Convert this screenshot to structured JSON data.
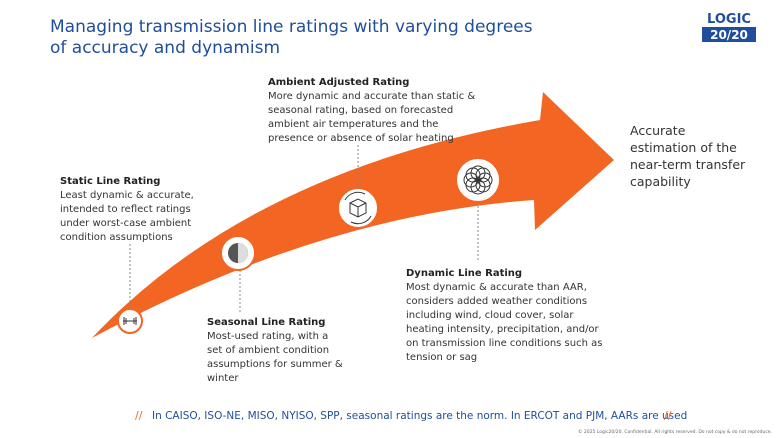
{
  "header": {
    "title": [
      "Managing transmission line ratings with varying degrees",
      "of accuracy and dynamism"
    ],
    "logo": {
      "top": "LOGIC",
      "bottom": "20/20"
    }
  },
  "stages": [
    {
      "title": "Static Line Rating",
      "description": [
        "Least dynamic & accurate,",
        "intended to reflect ratings",
        "under worst-case ambient",
        "condition assumptions"
      ]
    },
    {
      "title": "Seasonal Line Rating",
      "description": [
        "Most-used rating, with a",
        "set of ambient condition",
        "assumptions for summer &",
        "winter"
      ]
    },
    {
      "title": "Ambient Adjusted Rating",
      "description": [
        "More dynamic and accurate than static &",
        "seasonal rating, based on forecasted",
        "ambient air temperatures and the",
        "presence or absence of solar heating"
      ]
    },
    {
      "title": "Dynamic Line Rating",
      "description": [
        "Most dynamic & accurate than AAR,",
        "considers added weather conditions",
        "including wind, cloud cover, solar",
        "heating intensity, precipitation, and/or",
        "on transmission line conditions such as",
        "tension or sag"
      ]
    }
  ],
  "outcome": [
    "Accurate",
    "estimation of the",
    "near-term transfer",
    "capability"
  ],
  "footnote": {
    "marker": "//",
    "text": "In CAISO, ISO-NE, MISO, NYISO, SPP, seasonal ratings are the norm. In ERCOT and PJM, AARs are used"
  },
  "copyright": "© 2025 Logic20/20. Confidential. All rights reserved. Do not copy & do not reproduce."
}
